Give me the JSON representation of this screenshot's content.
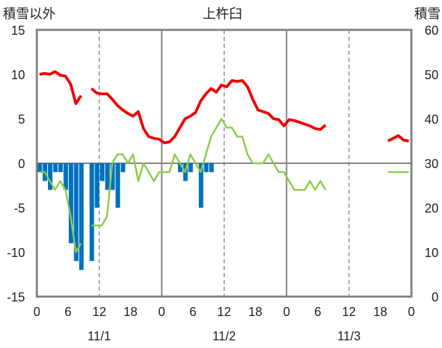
{
  "chart_data": {
    "type": "bar+line",
    "title": "上杵臼",
    "left_axis_label": "積雪以外",
    "right_axis_label": "積雪",
    "ylim_left": [
      -15,
      15
    ],
    "ylim_right": [
      0,
      60
    ],
    "left_ticks": [
      "15",
      "10",
      "5",
      "0",
      "-5",
      "-10",
      "-15"
    ],
    "right_ticks": [
      "60",
      "50",
      "40",
      "30",
      "20",
      "10",
      "0"
    ],
    "x_tick_labels": [
      "0",
      "6",
      "12",
      "18",
      "0",
      "6",
      "12",
      "18",
      "0",
      "6",
      "12",
      "18",
      "0"
    ],
    "date_labels": [
      "11/1",
      "11/2",
      "11/3"
    ],
    "grid": true,
    "series": [
      {
        "kind": "line",
        "axis": "left",
        "color": "#ee0000",
        "points": [
          [
            0,
            10
          ],
          [
            1,
            10.1
          ],
          [
            2,
            10
          ],
          [
            3,
            10.3
          ],
          [
            4,
            9.9
          ],
          [
            5,
            9.8
          ],
          [
            6,
            8.9
          ],
          [
            7,
            6.7
          ],
          [
            8,
            7.6
          ],
          null,
          [
            10,
            8.4
          ],
          [
            11,
            7.9
          ],
          [
            12,
            7.8
          ],
          [
            13,
            7.8
          ],
          [
            14,
            7.2
          ],
          [
            15,
            6.5
          ],
          [
            16,
            6
          ],
          [
            17,
            5.6
          ],
          [
            18,
            5.3
          ],
          [
            19,
            5.8
          ],
          [
            20,
            3.9
          ],
          [
            21,
            3
          ],
          [
            22,
            2.8
          ],
          [
            23,
            2.7
          ],
          [
            24,
            2.3
          ],
          [
            25,
            2.4
          ],
          [
            26,
            3
          ],
          [
            27,
            4
          ],
          [
            28,
            5
          ],
          [
            29,
            5.3
          ],
          [
            30,
            5.7
          ],
          [
            31,
            7
          ],
          [
            32,
            7.8
          ],
          [
            33,
            8.4
          ],
          [
            34,
            8
          ],
          [
            35,
            8.8
          ],
          [
            36,
            8.6
          ],
          [
            37,
            9.3
          ],
          [
            38,
            9.2
          ],
          [
            39,
            9.3
          ],
          [
            40,
            8.6
          ],
          [
            41,
            7.2
          ],
          [
            42,
            6
          ],
          [
            43,
            5.8
          ],
          [
            44,
            5.6
          ],
          [
            45,
            5
          ],
          [
            46,
            4.9
          ],
          [
            47,
            4.2
          ],
          [
            48,
            4.9
          ],
          [
            49,
            4.8
          ],
          [
            50,
            4.6
          ],
          [
            51,
            4.4
          ],
          [
            52,
            4.2
          ],
          [
            53,
            3.9
          ],
          [
            54,
            3.8
          ],
          [
            55,
            4.3
          ],
          null,
          [
            67,
            2.5
          ],
          [
            68,
            2.8
          ],
          [
            69,
            3.1
          ],
          [
            70,
            2.6
          ],
          [
            71,
            2.5
          ]
        ]
      },
      {
        "kind": "line",
        "axis": "left",
        "color": "#88cc44",
        "points": [
          [
            0,
            -1
          ],
          [
            1,
            -1
          ],
          [
            2,
            -2
          ],
          [
            3,
            -3
          ],
          [
            4,
            -2
          ],
          [
            5,
            -3
          ],
          [
            6,
            -6
          ],
          [
            7,
            -10
          ],
          [
            8,
            -9
          ],
          null,
          [
            10,
            -7
          ],
          [
            11,
            -7
          ],
          [
            12,
            -7
          ],
          [
            13,
            -6
          ],
          [
            14,
            0
          ],
          [
            15,
            1
          ],
          [
            16,
            1
          ],
          [
            17,
            0
          ],
          [
            18,
            1
          ],
          [
            19,
            -2
          ],
          [
            20,
            0
          ],
          [
            21,
            -1
          ],
          [
            22,
            -2
          ],
          [
            23,
            -1
          ],
          [
            24,
            -1
          ],
          [
            25,
            -1
          ],
          [
            26,
            1
          ],
          [
            27,
            0
          ],
          [
            28,
            -1
          ],
          [
            29,
            1
          ],
          [
            30,
            0
          ],
          [
            31,
            -1
          ],
          [
            32,
            1
          ],
          [
            33,
            3
          ],
          [
            34,
            4
          ],
          [
            35,
            5
          ],
          [
            36,
            4
          ],
          [
            37,
            4
          ],
          [
            38,
            3
          ],
          [
            39,
            3
          ],
          [
            40,
            1
          ],
          [
            41,
            0
          ],
          [
            42,
            0
          ],
          [
            43,
            0
          ],
          [
            44,
            1
          ],
          [
            45,
            0
          ],
          [
            46,
            -1
          ],
          [
            47,
            -1
          ],
          [
            48,
            -2
          ],
          [
            49,
            -3
          ],
          [
            50,
            -3
          ],
          [
            51,
            -3
          ],
          [
            52,
            -2
          ],
          [
            53,
            -3
          ],
          [
            54,
            -2
          ],
          [
            55,
            -3
          ],
          null,
          [
            67,
            -1
          ],
          [
            68,
            -1
          ],
          [
            69,
            -1
          ],
          [
            70,
            -1
          ],
          [
            71,
            -1
          ]
        ]
      },
      {
        "kind": "bar",
        "axis": "left",
        "color": "#0070c0",
        "points": [
          [
            0,
            -1
          ],
          [
            1,
            -2
          ],
          [
            2,
            -3
          ],
          [
            3,
            -1
          ],
          [
            4,
            -1
          ],
          [
            5,
            -3
          ],
          [
            6,
            -9
          ],
          [
            7,
            -11
          ],
          [
            8,
            -12
          ],
          [
            10,
            -11
          ],
          [
            11,
            -5
          ],
          [
            12,
            -2
          ],
          [
            13,
            -3
          ],
          [
            14,
            -3
          ],
          [
            15,
            -5
          ],
          [
            16,
            -1
          ],
          [
            27,
            -1
          ],
          [
            28,
            -2
          ],
          [
            29,
            -1
          ],
          [
            31,
            -5
          ],
          [
            32,
            -1
          ],
          [
            33,
            -1
          ]
        ]
      },
      {
        "kind": "line",
        "axis": "right",
        "color": "#7030a0",
        "points": [
          [
            0,
            0
          ],
          [
            55,
            0
          ],
          null,
          [
            62,
            0
          ],
          [
            71,
            0
          ]
        ]
      }
    ]
  }
}
